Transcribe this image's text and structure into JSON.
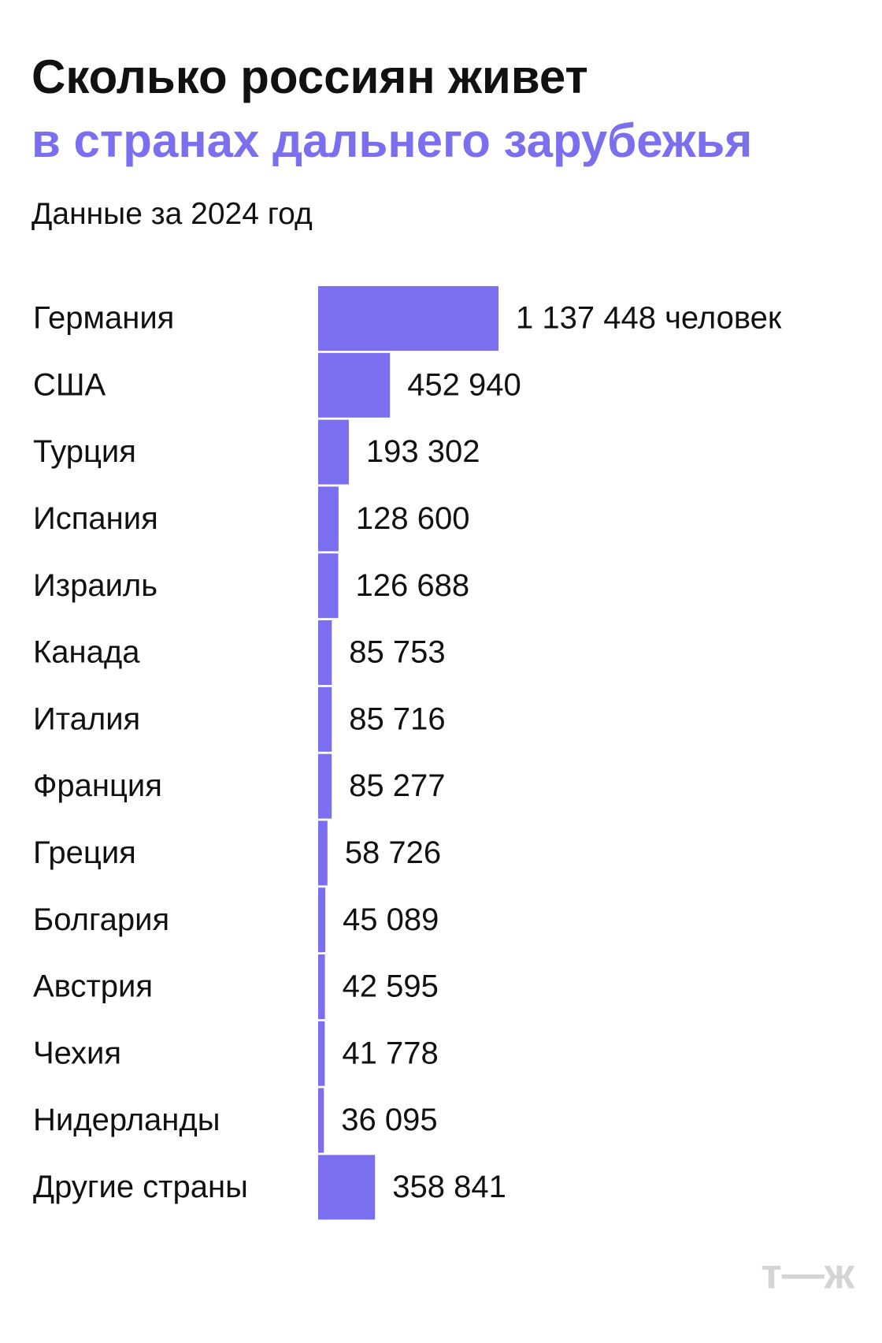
{
  "chart_data": {
    "type": "bar",
    "orientation": "horizontal",
    "title": "Сколько россиян живет",
    "title_line2": "в странах дальнего зарубежья",
    "subtitle": "Данные за 2024 год",
    "categories": [
      "Германия",
      "США",
      "Турция",
      "Испания",
      "Израиль",
      "Канада",
      "Италия",
      "Франция",
      "Греция",
      "Болгария",
      "Австрия",
      "Чехия",
      "Нидерланды",
      "Другие страны"
    ],
    "values": [
      1137448,
      452940,
      193302,
      128600,
      126688,
      85753,
      85716,
      85277,
      58726,
      45089,
      42595,
      41778,
      36095,
      358841
    ],
    "value_labels": [
      "1 137 448 человек",
      "452 940",
      "193 302",
      "128 600",
      "126 688",
      "85 753",
      "85 716",
      "85 277",
      "58 726",
      "45 089",
      "42 595",
      "41 778",
      "36 095",
      "358 841"
    ],
    "color": "#7b6ff0",
    "brand": "т—ж"
  }
}
